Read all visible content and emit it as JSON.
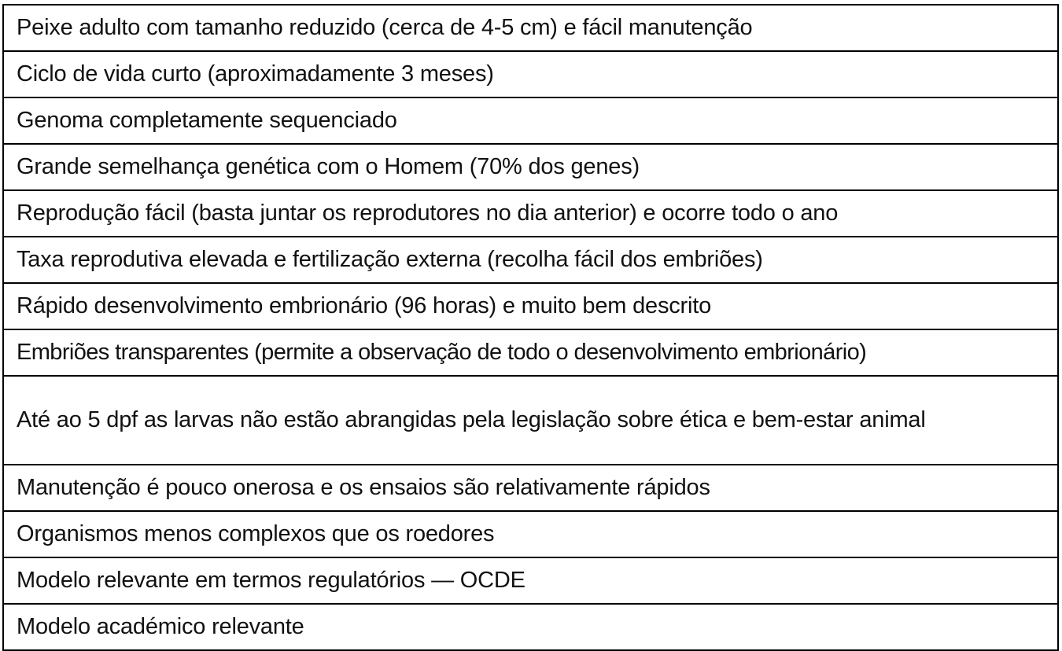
{
  "rows": [
    "Peixe adulto com tamanho reduzido (cerca de 4-5 cm) e fácil manutenção",
    "Ciclo de vida curto (aproximadamente 3 meses)",
    "Genoma completamente sequenciado",
    "Grande semelhança genética com o Homem (70% dos genes)",
    "Reprodução fácil (basta juntar os reprodutores no dia anterior) e ocorre todo o ano",
    "Taxa reprodutiva elevada e fertilização externa (recolha fácil dos embriões)",
    "Rápido desenvolvimento embrionário (96 horas) e muito bem descrito",
    "Embriões transparentes (permite a observação de todo o desenvolvimento embrionário)",
    "Até ao 5 dpf as larvas não estão abrangidas pela legislação sobre ética e bem-estar animal",
    "Manutenção é pouco onerosa e os ensaios são relativamente rápidos",
    "Organismos menos complexos que os roedores",
    "Modelo relevante em termos regulatórios — OCDE",
    "Modelo académico relevante"
  ]
}
